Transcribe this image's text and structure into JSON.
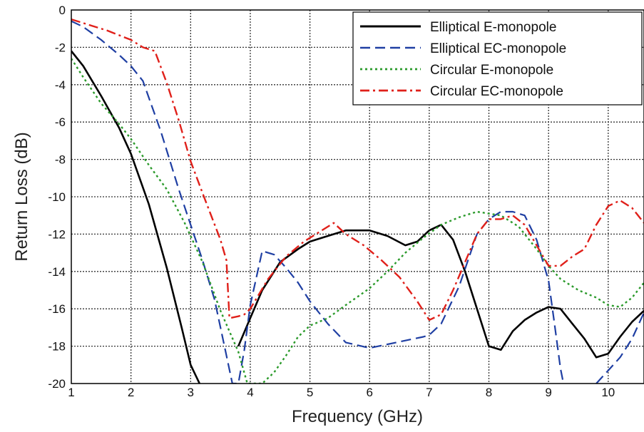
{
  "chart_data": {
    "type": "line",
    "title": "",
    "xlabel": "Frequency (GHz)",
    "ylabel": "Return Loss (dB)",
    "xlim": [
      1,
      10.6
    ],
    "ylim": [
      -20,
      0
    ],
    "xticks": [
      1,
      2,
      3,
      4,
      5,
      6,
      7,
      8,
      9,
      10
    ],
    "yticks": [
      0,
      -2,
      -4,
      -6,
      -8,
      -10,
      -12,
      -14,
      -16,
      -18,
      -20
    ],
    "grid": true,
    "legend_position": "top-right",
    "series": [
      {
        "name": "Elliptical E-monopole",
        "color": "#000000",
        "line_style": "solid",
        "x": [
          1.0,
          1.2,
          1.5,
          1.8,
          2.0,
          2.3,
          2.6,
          2.85,
          3.0,
          3.15
        ],
        "y": [
          -2.2,
          -3.0,
          -4.6,
          -6.3,
          -7.7,
          -10.4,
          -13.8,
          -17.0,
          -19.0,
          -20.0
        ],
        "x2": [
          3.8,
          4.0,
          4.2,
          4.5,
          4.8,
          5.0,
          5.3,
          5.6,
          6.0,
          6.3,
          6.6,
          6.8,
          7.0,
          7.2,
          7.4,
          7.6,
          7.8,
          8.0,
          8.2,
          8.4,
          8.6,
          8.8,
          9.0,
          9.2,
          9.4,
          9.6,
          9.8,
          10.0,
          10.2,
          10.4,
          10.6
        ],
        "y2": [
          -18.0,
          -16.5,
          -15.0,
          -13.5,
          -12.8,
          -12.4,
          -12.1,
          -11.8,
          -11.8,
          -12.1,
          -12.6,
          -12.4,
          -11.8,
          -11.5,
          -12.3,
          -14.0,
          -16.0,
          -18.0,
          -18.2,
          -17.2,
          -16.6,
          -16.2,
          -15.9,
          -16.0,
          -16.8,
          -17.6,
          -18.6,
          -18.4,
          -17.5,
          -16.7,
          -16.1
        ]
      },
      {
        "name": "Elliptical EC-monopole",
        "color": "#1f3fa3",
        "line_style": "dashed",
        "x": [
          1.0,
          1.2,
          1.5,
          1.8,
          2.0,
          2.2,
          2.5,
          2.8,
          3.0,
          3.2,
          3.4,
          3.6,
          3.7,
          3.8,
          3.9,
          4.0,
          4.2,
          4.4,
          4.6,
          4.8,
          5.0,
          5.3,
          5.6,
          6.0,
          6.3,
          6.6,
          6.9,
          7.0,
          7.2,
          7.5,
          7.8,
          8.0,
          8.2,
          8.4,
          8.6,
          8.8,
          9.0,
          9.1,
          9.2,
          9.25
        ],
        "y": [
          -0.6,
          -0.9,
          -1.6,
          -2.4,
          -3.0,
          -3.8,
          -6.5,
          -9.6,
          -11.5,
          -13.4,
          -15.5,
          -18.5,
          -20.0,
          -20.0,
          -18.2,
          -15.8,
          -12.9,
          -13.1,
          -13.8,
          -14.6,
          -15.6,
          -16.8,
          -17.8,
          -18.1,
          -17.9,
          -17.7,
          -17.5,
          -17.4,
          -16.8,
          -14.8,
          -12.0,
          -11.2,
          -10.8,
          -10.8,
          -11.0,
          -12.3,
          -14.5,
          -16.8,
          -19.2,
          -20.0
        ],
        "x2": [
          9.8,
          10.0,
          10.2,
          10.4,
          10.6
        ],
        "y2": [
          -20.0,
          -19.3,
          -18.6,
          -17.6,
          -16.2
        ]
      },
      {
        "name": "Circular E-monopole",
        "color": "#2b9a2b",
        "line_style": "dotted",
        "x": [
          1.0,
          1.2,
          1.5,
          1.8,
          2.0,
          2.3,
          2.6,
          2.9,
          3.2,
          3.5,
          3.8,
          3.95,
          4.2,
          4.4,
          4.6,
          4.8,
          5.0,
          5.3,
          5.6,
          6.0,
          6.3,
          6.6,
          6.9,
          7.2,
          7.5,
          7.8,
          8.0,
          8.2,
          8.5,
          8.8,
          9.0,
          9.2,
          9.5,
          9.8,
          10.0,
          10.2,
          10.4,
          10.6
        ],
        "y": [
          -2.6,
          -3.6,
          -5.0,
          -6.1,
          -6.9,
          -8.3,
          -9.6,
          -11.4,
          -13.5,
          -16.1,
          -18.3,
          -20.0,
          -20.0,
          -19.4,
          -18.5,
          -17.5,
          -16.9,
          -16.5,
          -15.8,
          -14.9,
          -14.0,
          -13.0,
          -12.2,
          -11.5,
          -11.1,
          -10.8,
          -10.9,
          -11.0,
          -11.6,
          -12.8,
          -13.7,
          -14.4,
          -15.0,
          -15.4,
          -15.8,
          -15.9,
          -15.4,
          -14.6
        ]
      },
      {
        "name": "Circular EC-monopole",
        "color": "#e0201a",
        "line_style": "dashdot",
        "x": [
          1.0,
          1.3,
          1.6,
          2.0,
          2.2,
          2.4,
          2.6,
          2.8,
          3.0,
          3.2,
          3.5,
          3.6,
          3.65,
          3.8,
          3.9,
          4.0,
          4.3,
          4.6,
          4.9,
          5.2,
          5.4,
          5.6,
          5.9,
          6.2,
          6.5,
          6.8,
          7.0,
          7.2,
          7.4,
          7.6,
          7.8,
          8.0,
          8.2,
          8.4,
          8.6,
          8.8,
          9.0,
          9.2,
          9.4,
          9.6,
          9.8,
          10.0,
          10.2,
          10.4,
          10.6
        ],
        "y": [
          -0.5,
          -0.8,
          -1.1,
          -1.6,
          -2.0,
          -2.2,
          -3.9,
          -5.9,
          -8.1,
          -9.8,
          -12.3,
          -13.4,
          -16.5,
          -16.4,
          -16.3,
          -16.0,
          -14.4,
          -13.2,
          -12.4,
          -11.8,
          -11.4,
          -12.0,
          -12.6,
          -13.4,
          -14.3,
          -15.6,
          -16.6,
          -16.3,
          -15.0,
          -13.5,
          -12.0,
          -11.2,
          -11.2,
          -11.0,
          -11.5,
          -12.6,
          -13.7,
          -13.7,
          -13.2,
          -12.8,
          -11.5,
          -10.5,
          -10.2,
          -10.6,
          -11.4
        ]
      }
    ]
  }
}
